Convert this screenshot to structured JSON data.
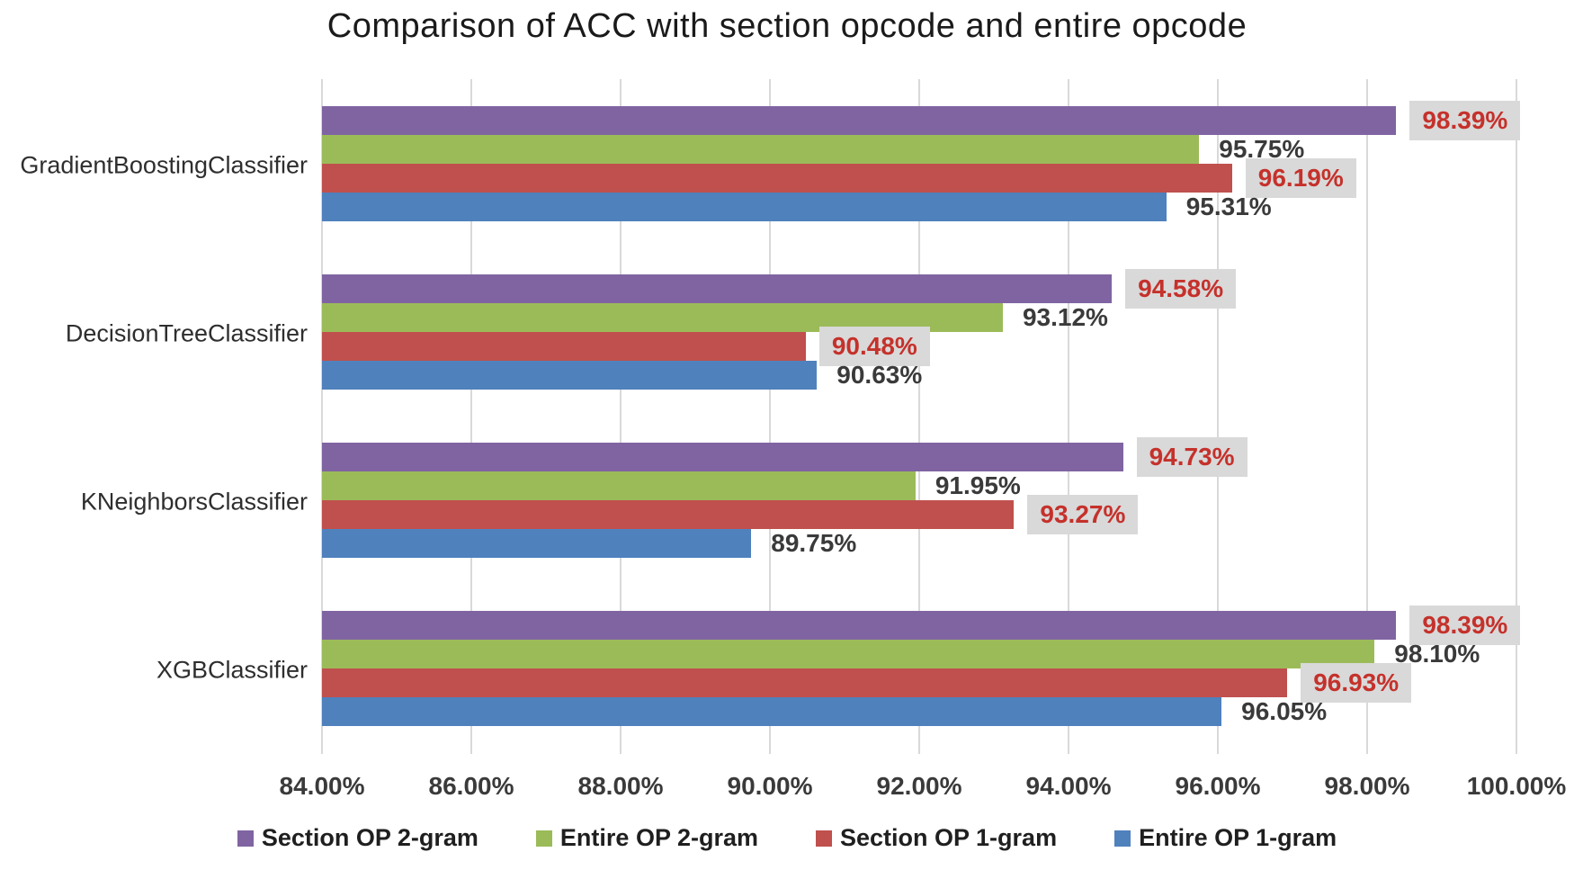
{
  "chart_data": {
    "type": "bar",
    "orientation": "horizontal",
    "title": "Comparison of ACC with section opcode and entire opcode",
    "categories": [
      "GradientBoostingClassifier",
      "DecisionTreeClassifier",
      "KNeighborsClassifier",
      "XGBClassifier"
    ],
    "series": [
      {
        "name": "Section OP 2-gram",
        "color": "#8064A2",
        "values": [
          98.39,
          94.58,
          94.73,
          98.39
        ],
        "labels": [
          "98.39%",
          "94.58%",
          "94.73%",
          "98.39%"
        ],
        "label_style": "boxed"
      },
      {
        "name": "Entire OP 2-gram",
        "color": "#9BBB59",
        "values": [
          95.75,
          93.12,
          91.95,
          98.1
        ],
        "labels": [
          "95.75%",
          "93.12%",
          "91.95%",
          "98.10%"
        ],
        "label_style": "plain"
      },
      {
        "name": "Section OP 1-gram",
        "color": "#C0504D",
        "values": [
          96.19,
          90.48,
          93.27,
          96.93
        ],
        "labels": [
          "96.19%",
          "90.48%",
          "93.27%",
          "96.93%"
        ],
        "label_style": "boxed"
      },
      {
        "name": "Entire OP 1-gram",
        "color": "#4F81BD",
        "values": [
          95.31,
          90.63,
          89.75,
          96.05
        ],
        "labels": [
          "95.31%",
          "90.63%",
          "89.75%",
          "96.05%"
        ],
        "label_style": "plain"
      }
    ],
    "x_axis": {
      "min": 84,
      "max": 100,
      "tick_labels": [
        "84.00%",
        "86.00%",
        "88.00%",
        "90.00%",
        "92.00%",
        "94.00%",
        "96.00%",
        "98.00%",
        "100.00%"
      ]
    },
    "legend": {
      "position": "bottom",
      "entries": [
        "Section OP 2-gram",
        "Entire OP 2-gram",
        "Section OP 1-gram",
        "Entire OP 1-gram"
      ]
    },
    "grid": "vertical-only",
    "styles": {
      "boxed_label_bg": "#D9D9D9",
      "boxed_label_text": "#C5312B",
      "plain_label_text": "#3A3A3A",
      "gridline_color": "#D9D9D9"
    }
  }
}
